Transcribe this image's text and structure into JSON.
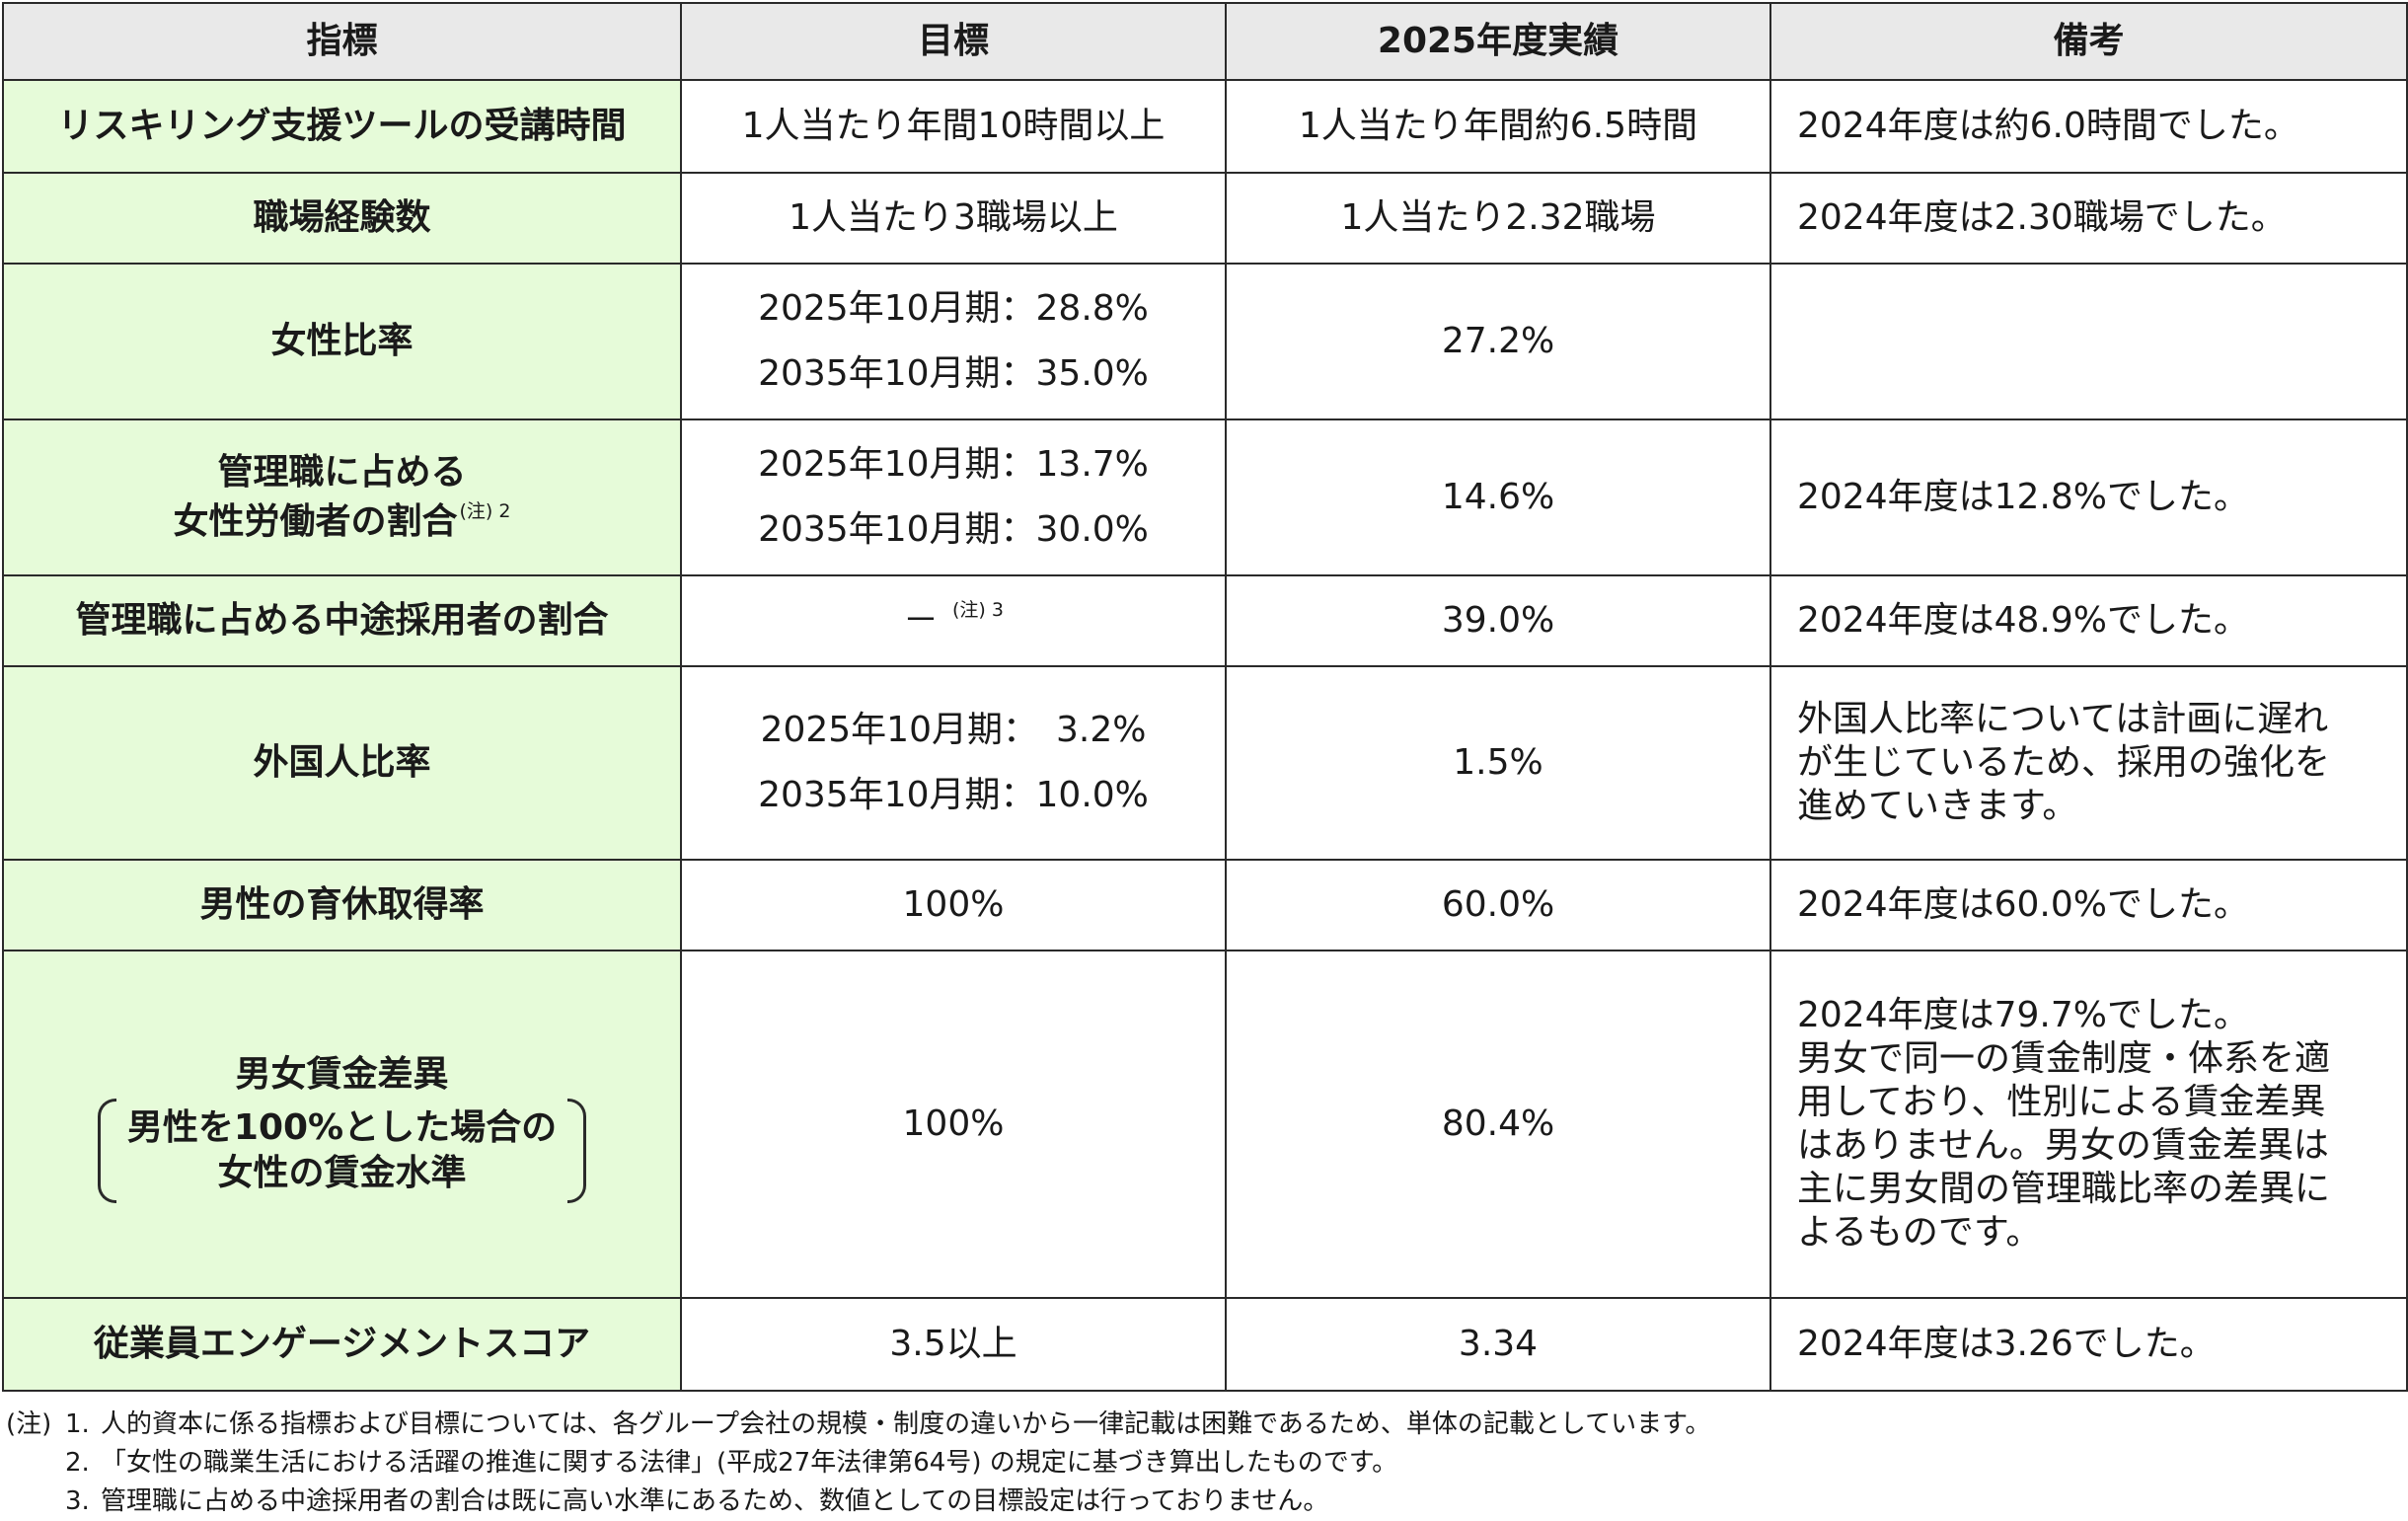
{
  "header": [
    "指標",
    "目標",
    "2025年度実績",
    "備考"
  ],
  "rows": [
    {
      "indicator": [
        "リスキリング支援ツールの受講時間"
      ],
      "target": [
        "1人当たり年間10時間以上"
      ],
      "actual": "1人当たり年間約6.5時間",
      "remarks": [
        "2024年度は約6.0時間でした。"
      ]
    },
    {
      "indicator": [
        "職場経験数"
      ],
      "target": [
        "1人当たり3職場以上"
      ],
      "actual": "1人当たり2.32職場",
      "remarks": [
        "2024年度は2.30職場でした。"
      ]
    },
    {
      "indicator": [
        "女性比率"
      ],
      "target": [
        "2025年10月期：28.8%",
        "2035年10月期：35.0%"
      ],
      "actual": "27.2%",
      "remarks": []
    },
    {
      "indicator": [
        "管理職に占める",
        "女性労働者の割合"
      ],
      "indicator_note": "(注) 2",
      "target": [
        "2025年10月期：13.7%",
        "2035年10月期：30.0%"
      ],
      "actual": "14.6%",
      "remarks": [
        "2024年度は12.8%でした。"
      ]
    },
    {
      "indicator": [
        "管理職に占める中途採用者の割合"
      ],
      "target": [
        "－"
      ],
      "target_note": "(注) 3",
      "actual": "39.0%",
      "remarks": [
        "2024年度は48.9%でした。"
      ]
    },
    {
      "indicator": [
        "外国人比率"
      ],
      "target": [
        "2025年10月期：　3.2%",
        "2035年10月期：10.0%"
      ],
      "actual": "1.5%",
      "remarks": [
        "外国人比率については計画に遅れ",
        "が生じているため、採用の強化を",
        "進めていきます。"
      ]
    },
    {
      "indicator": [
        "男性の育休取得率"
      ],
      "target": [
        "100%"
      ],
      "actual": "60.0%",
      "remarks": [
        "2024年度は60.0%でした。"
      ]
    },
    {
      "indicator": [
        "男女賃金差異"
      ],
      "indicator_paren": [
        "男性を100%とした場合の",
        "女性の賃金水準"
      ],
      "target": [
        "100%"
      ],
      "actual": "80.4%",
      "remarks": [
        "2024年度は79.7%でした。",
        "男女で同一の賃金制度・体系を適",
        "用しており、性別による賃金差異",
        "はありません。男女の賃金差異は",
        "主に男女間の管理職比率の差異に",
        "よるものです。"
      ]
    },
    {
      "indicator": [
        "従業員エンゲージメントスコア"
      ],
      "target": [
        "3.5以上"
      ],
      "actual": "3.34",
      "remarks": [
        "2024年度は3.26でした。"
      ]
    }
  ],
  "notes": {
    "prefix": "(注)",
    "items": [
      {
        "num": "1.",
        "text": "人的資本に係る指標および目標については、各グループ会社の規模・制度の違いから一律記載は困難であるため、単体の記載としています。"
      },
      {
        "num": "2.",
        "text": "「女性の職業生活における活躍の推進に関する法律」(平成27年法律第64号) の規定に基づき算出したものです。"
      },
      {
        "num": "3.",
        "text": "管理職に占める中途採用者の割合は既に高い水準にあるため、数値としての目標設定は行っておりません。"
      }
    ]
  }
}
